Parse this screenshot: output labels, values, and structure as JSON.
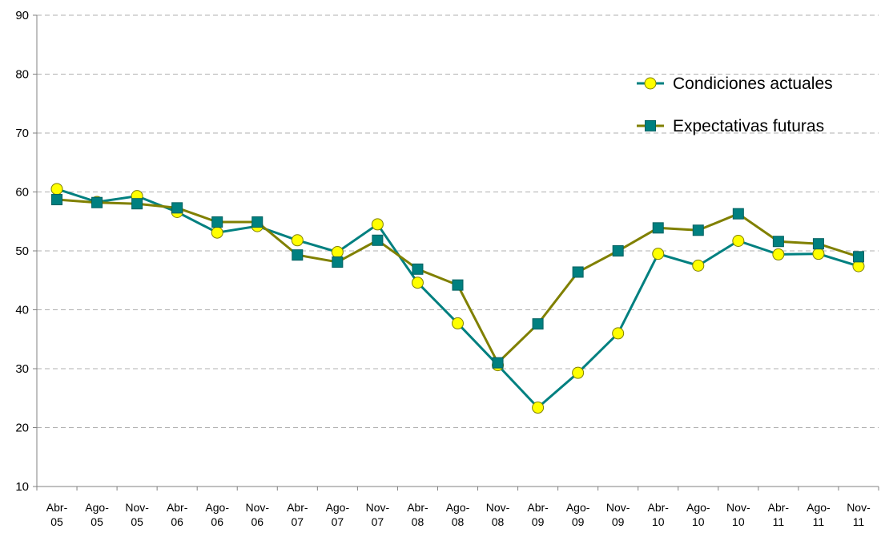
{
  "chart_data": {
    "type": "line",
    "categories": [
      "Abr-05",
      "Ago-05",
      "Nov-05",
      "Abr-06",
      "Ago-06",
      "Nov-06",
      "Abr-07",
      "Ago-07",
      "Nov-07",
      "Abr-08",
      "Ago-08",
      "Nov-08",
      "Abr-09",
      "Ago-09",
      "Nov-09",
      "Abr-10",
      "Ago-10",
      "Nov-10",
      "Abr-11",
      "Ago-11",
      "Nov-11"
    ],
    "series": [
      {
        "name": "Condiciones actuales",
        "color": "#008080",
        "marker": "circle",
        "marker_color": "#ffff00",
        "marker_edge": "#808000",
        "values": [
          60.5,
          58.3,
          59.3,
          56.6,
          53.1,
          54.2,
          51.8,
          49.8,
          54.5,
          44.6,
          37.7,
          30.6,
          23.4,
          29.3,
          36.0,
          49.5,
          47.5,
          51.7,
          49.4,
          49.5,
          47.4
        ]
      },
      {
        "name": "Expectativas futuras",
        "color": "#808000",
        "marker": "square",
        "marker_color": "#008080",
        "marker_edge": "#006060",
        "values": [
          58.7,
          58.2,
          58.0,
          57.3,
          54.9,
          54.9,
          49.3,
          48.1,
          51.8,
          46.9,
          44.2,
          31.0,
          37.6,
          46.4,
          50.0,
          53.9,
          53.5,
          56.3,
          51.6,
          51.2,
          49.0
        ]
      }
    ],
    "ylim": [
      10,
      90
    ],
    "yticks": [
      10,
      20,
      30,
      40,
      50,
      60,
      70,
      80,
      90
    ],
    "grid": true,
    "legend": "upper right"
  }
}
